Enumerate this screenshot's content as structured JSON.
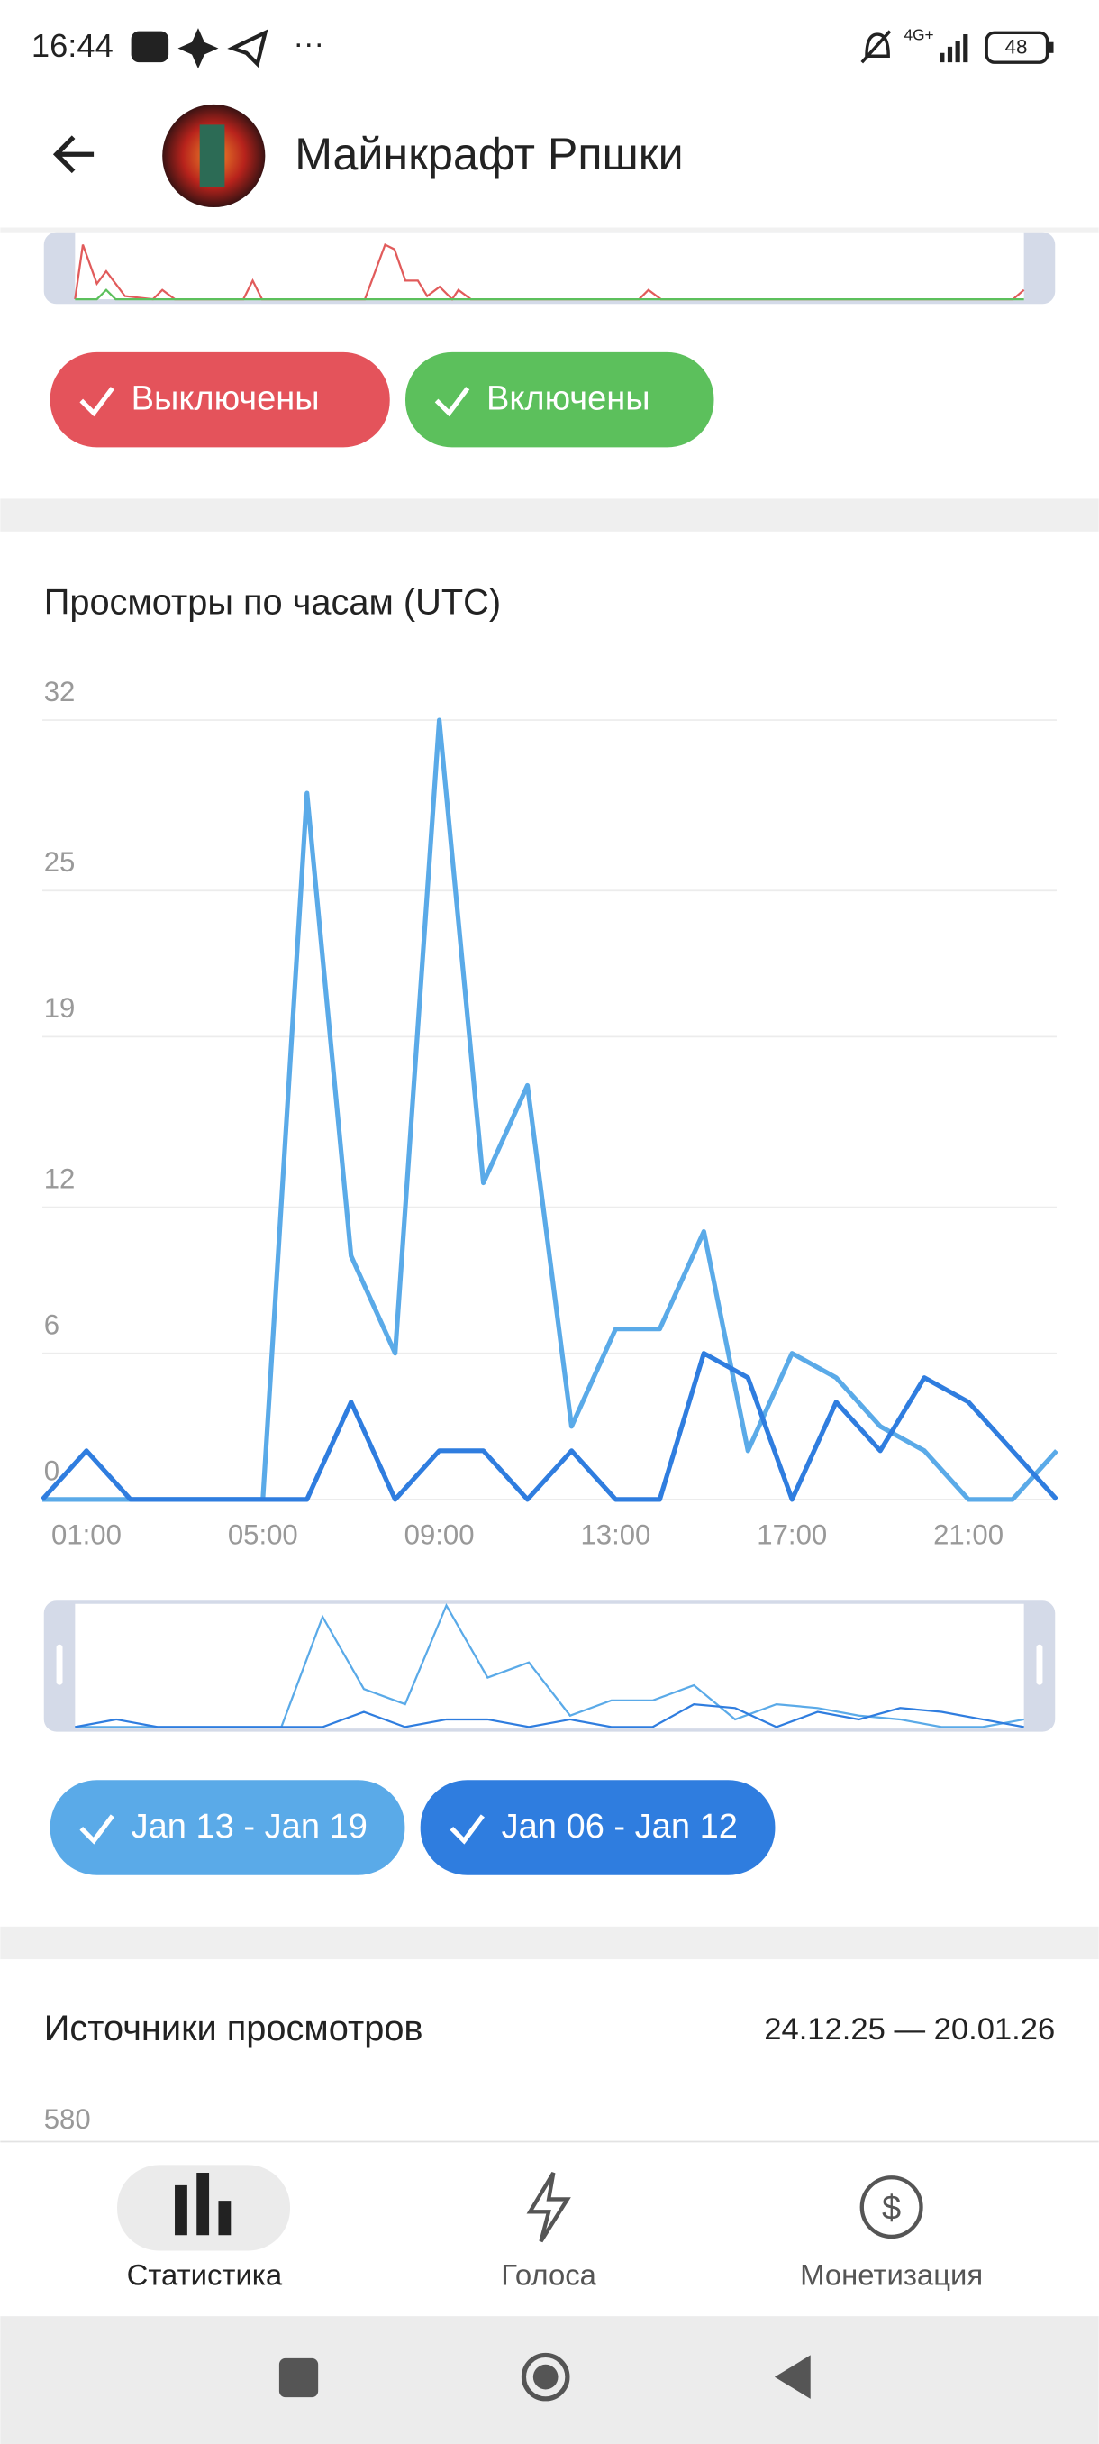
{
  "status_bar": {
    "time": "16:44",
    "network": "4G+",
    "battery": "48"
  },
  "header": {
    "title": "Майнкрафт Рпшки"
  },
  "top_chart": {
    "legend": [
      "Выключены",
      "Включены"
    ]
  },
  "chart_data": {
    "type": "line",
    "title": "Просмотры по часам (UTC)",
    "categories": [
      null,
      "01:00",
      null,
      null,
      null,
      "05:00",
      null,
      null,
      null,
      "09:00",
      null,
      null,
      null,
      "13:00",
      null,
      null,
      null,
      "17:00",
      null,
      null,
      null,
      "21:00",
      null,
      null
    ],
    "series": [
      {
        "name": "Jan 13 - Jan 19",
        "color": "#5aaae8",
        "values": [
          0,
          0,
          0,
          0,
          0,
          0,
          29,
          10,
          6,
          32,
          13,
          17,
          3,
          7,
          7,
          11,
          2,
          6,
          5,
          3,
          2,
          0,
          0,
          2
        ]
      },
      {
        "name": "Jan 06 - Jan 12",
        "color": "#2f7ddf",
        "values": [
          0,
          2,
          0,
          0,
          0,
          0,
          0,
          4,
          0,
          2,
          2,
          0,
          2,
          0,
          0,
          6,
          5,
          0,
          4,
          2,
          5,
          4,
          2,
          0
        ]
      }
    ],
    "ylim": [
      0,
      32
    ],
    "yticks": [
      0,
      6,
      12,
      19,
      25,
      32
    ],
    "grid": true
  },
  "sources": {
    "title": "Источники просмотров",
    "date_range": "24.12.25 — 20.01.26",
    "first_tick": "580"
  },
  "bottom_nav": [
    "Статистика",
    "Голоса",
    "Монетизация"
  ]
}
